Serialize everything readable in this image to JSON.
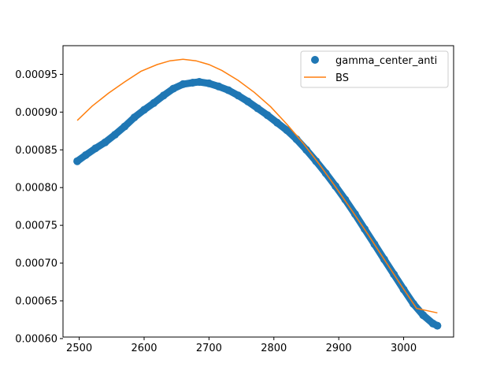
{
  "chart_data": {
    "type": "scatter",
    "title": "",
    "xlabel": "",
    "ylabel": "",
    "xlim": [
      2475,
      3077
    ],
    "ylim": [
      0.000602,
      0.000988
    ],
    "xticks": [
      2500,
      2600,
      2700,
      2800,
      2900,
      3000
    ],
    "yticks": [
      0.0006,
      0.00065,
      0.0007,
      0.00075,
      0.0008,
      0.00085,
      0.0009,
      0.00095
    ],
    "xtick_labels": [
      "2500",
      "2600",
      "2700",
      "2800",
      "2900",
      "3000"
    ],
    "ytick_labels": [
      "0.00060",
      "0.00065",
      "0.00070",
      "0.00075",
      "0.00080",
      "0.00085",
      "0.00090",
      "0.00095"
    ],
    "grid": false,
    "legend_position": "top-right",
    "series": [
      {
        "name": "gamma_center_anti",
        "kind": "scatter",
        "color": "#1f77b4",
        "x": [
          2497,
          2510,
          2525,
          2540,
          2555,
          2570,
          2585,
          2600,
          2615,
          2630,
          2645,
          2660,
          2675,
          2685,
          2700,
          2715,
          2730,
          2745,
          2760,
          2775,
          2790,
          2805,
          2820,
          2835,
          2850,
          2865,
          2880,
          2895,
          2910,
          2925,
          2940,
          2955,
          2970,
          2985,
          3000,
          3015,
          3030,
          3045,
          3052
        ],
        "y": [
          0.000835,
          0.000843,
          0.000852,
          0.00086,
          0.00087,
          0.000881,
          0.000893,
          0.000903,
          0.000912,
          0.000922,
          0.000931,
          0.000937,
          0.000939,
          0.00094,
          0.000938,
          0.000934,
          0.000929,
          0.000922,
          0.000914,
          0.000905,
          0.000896,
          0.000886,
          0.000876,
          0.000864,
          0.00085,
          0.000835,
          0.000819,
          0.000802,
          0.000784,
          0.000765,
          0.000745,
          0.000725,
          0.000705,
          0.000685,
          0.000665,
          0.000646,
          0.000631,
          0.00062,
          0.000617
        ]
      },
      {
        "name": "BS",
        "kind": "line",
        "color": "#ff7f0e",
        "x": [
          2497,
          2520,
          2545,
          2570,
          2595,
          2620,
          2640,
          2660,
          2680,
          2700,
          2720,
          2745,
          2770,
          2795,
          2820,
          2845,
          2870,
          2895,
          2920,
          2945,
          2970,
          2995,
          3020,
          3052
        ],
        "y": [
          0.000889,
          0.000908,
          0.000925,
          0.00094,
          0.000954,
          0.000963,
          0.000968,
          0.00097,
          0.000968,
          0.000963,
          0.000955,
          0.000942,
          0.000926,
          0.000907,
          0.000884,
          0.000859,
          0.000831,
          0.000801,
          0.00077,
          0.000738,
          0.000705,
          0.000672,
          0.00064,
          0.000634
        ]
      }
    ]
  }
}
